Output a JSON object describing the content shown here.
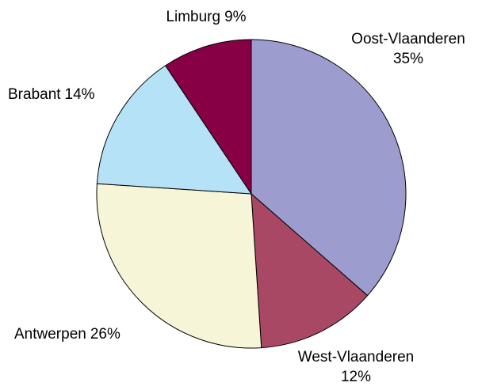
{
  "chart_data": {
    "type": "pie",
    "categories": [
      "Oost-Vlaanderen",
      "West-Vlaanderen",
      "Antwerpen",
      "Brabant",
      "Limburg"
    ],
    "values": [
      35,
      12,
      26,
      14,
      9
    ],
    "value_labels": [
      "35%",
      "12%",
      "26%",
      "14%",
      "9%"
    ],
    "colors": [
      "#9c9ccf",
      "#a84865",
      "#f6f5d8",
      "#b5e2f7",
      "#870046"
    ]
  }
}
